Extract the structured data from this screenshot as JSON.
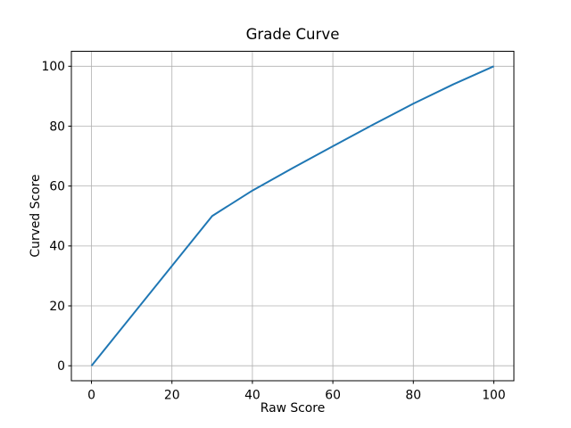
{
  "chart_data": {
    "type": "line",
    "title": "Grade Curve",
    "xlabel": "Raw Score",
    "ylabel": "Curved Score",
    "x": [
      0,
      30,
      40,
      50,
      60,
      70,
      80,
      90,
      100
    ],
    "y": [
      0,
      50,
      58.5,
      66,
      73.3,
      80.5,
      87.5,
      94,
      100
    ],
    "xlim": [
      -5,
      105
    ],
    "ylim": [
      -5,
      105
    ],
    "xticks": [
      0,
      20,
      40,
      60,
      80,
      100
    ],
    "yticks": [
      0,
      20,
      40,
      60,
      80,
      100
    ],
    "grid": true,
    "legend_position": "none",
    "line_color": "#1f77b4",
    "grid_color": "#b0b0b0",
    "spine_color": "#000000",
    "background_color": "#ffffff",
    "notes": "piecewise curve: linear 0-30 mapped to 0-50, then concave rise from (30,50) to (100,100)"
  }
}
